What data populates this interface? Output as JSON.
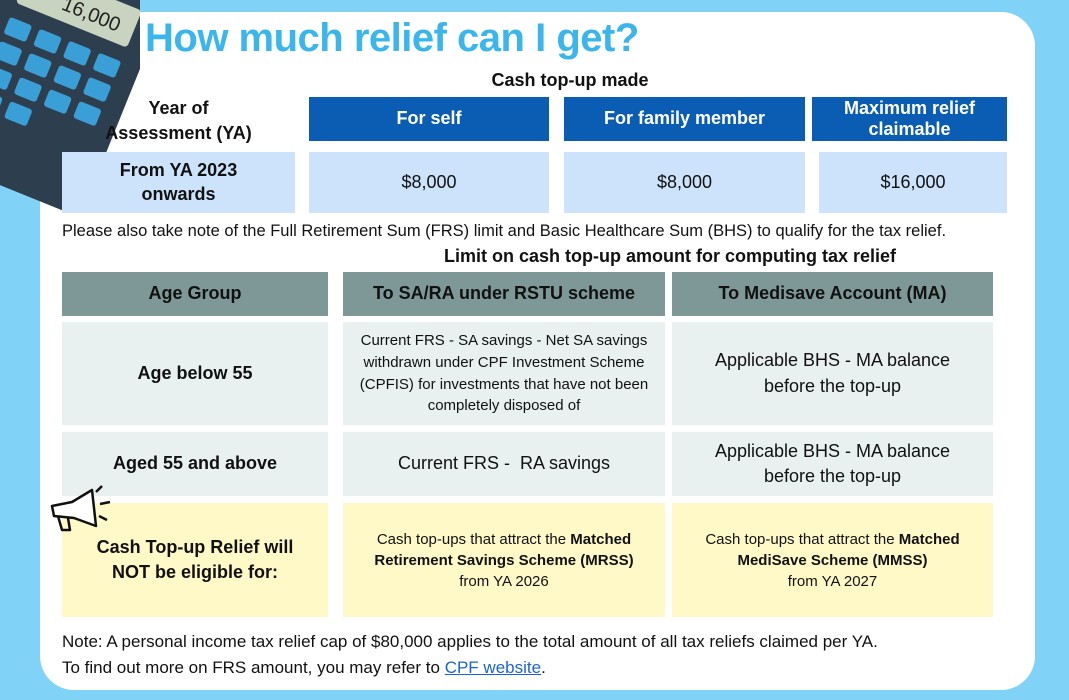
{
  "illustration": {
    "display": "16,000"
  },
  "header": {
    "title": "How much relief can I get?"
  },
  "table1": {
    "caption": "Cash top-up made",
    "row_header": "Year of Assessment (YA)",
    "columns": [
      "For self",
      "For family member",
      "Maximum relief claimable"
    ],
    "rows": [
      [
        "From YA 2023 onwards",
        "$8,000",
        "$8,000",
        "$16,000"
      ]
    ]
  },
  "note1": "Please also take note of the Full Retirement Sum (FRS) limit and Basic Healthcare Sum (BHS) to qualify for the tax relief.",
  "table2": {
    "caption": "Limit on cash top-up amount for computing tax relief",
    "columns": [
      "Age Group",
      "To SA/RA under RSTU scheme",
      "To Medisave Account (MA)"
    ],
    "rows": [
      [
        "Age below 55",
        "Current FRS - SA savings - Net SA savings withdrawn under CPF Investment Scheme (CPFIS) for investments that have not been completely disposed of",
        "Applicable BHS - MA balance before the top-up"
      ],
      [
        "Aged 55 and above",
        "Current FRS -  RA savings",
        "Applicable BHS - MA balance before the top-up"
      ]
    ],
    "exclusion": {
      "label": "Cash Top-up Relief will NOT be eligible for:",
      "ra": {
        "prefix": "Cash top-ups that attract the",
        "scheme": "Matched Retirement Savings Scheme (MRSS)",
        "suffix": "from YA 2026"
      },
      "ma": {
        "prefix": "Cash top-ups that attract the",
        "scheme": "Matched MediSave Scheme (MMSS)",
        "suffix": "from YA 2027"
      }
    }
  },
  "footer": {
    "note": "Note: A personal income tax relief cap of $80,000 applies to the total amount of all tax reliefs claimed per YA.",
    "more": {
      "text": "To find out more on FRS amount, you may refer to",
      "link": "CPF website",
      "end": "."
    }
  }
}
